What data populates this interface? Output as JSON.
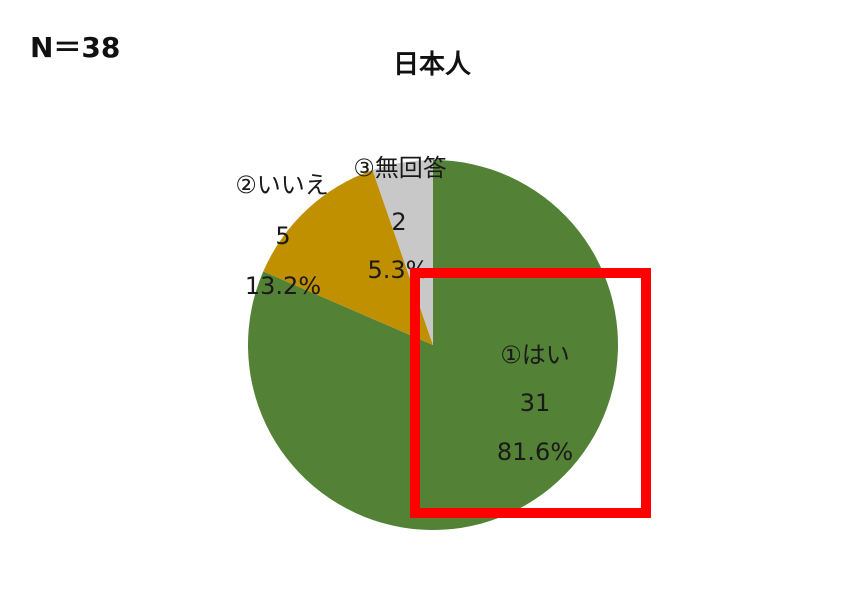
{
  "n_label": "N＝38",
  "chart_data": {
    "type": "pie",
    "title": "日本人",
    "start": "top",
    "direction": "clockwise",
    "slices": [
      {
        "label": "①はい",
        "count": "31",
        "percent_text": "81.6%",
        "value": 81.6,
        "color": "#538135"
      },
      {
        "label": "②いいえ",
        "count": "5",
        "percent_text": "13.2%",
        "value": 13.2,
        "color": "#C09000"
      },
      {
        "label": "③無回答",
        "count": "2",
        "percent_text": "5.3%",
        "value": 5.3,
        "color": "#C8C8C8"
      }
    ],
    "highlight": {
      "target": "①はい",
      "color": "#FF0000"
    }
  }
}
